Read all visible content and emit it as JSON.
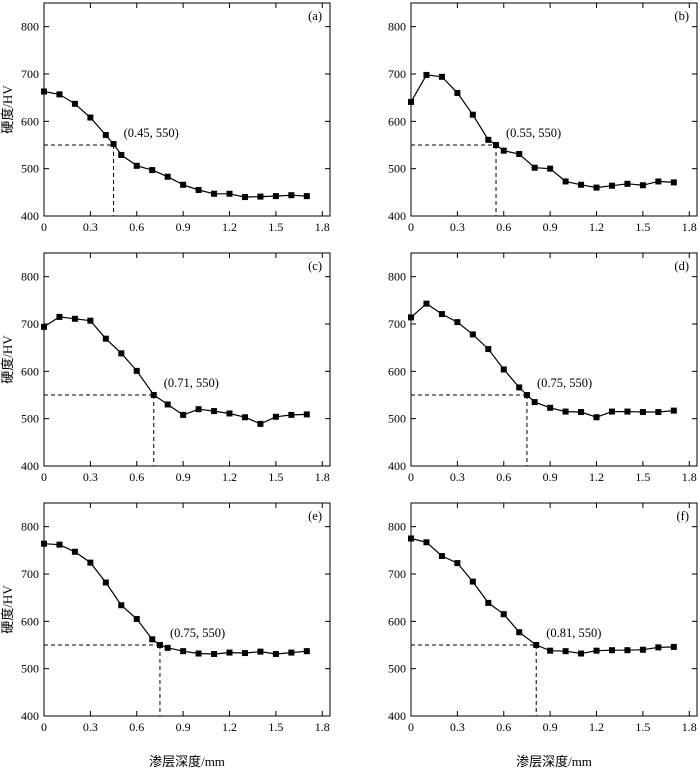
{
  "axes": {
    "ylabel": "硬度/HV",
    "xlabel": "渗层深度/mm",
    "yticks": [
      400,
      500,
      600,
      700,
      800
    ],
    "xticks": [
      "0",
      "0.3",
      "0.6",
      "0.9",
      "1.2",
      "1.5",
      "1.8"
    ]
  },
  "chart_data": [
    {
      "type": "line",
      "panel": "(a)",
      "annotation": "(0.45, 550)",
      "marker": [
        0.45,
        550
      ],
      "xlim": [
        0,
        1.85
      ],
      "ylim": [
        400,
        850
      ],
      "grid": false,
      "x": [
        0,
        0.1,
        0.2,
        0.3,
        0.4,
        0.45,
        0.5,
        0.6,
        0.7,
        0.8,
        0.9,
        1.0,
        1.1,
        1.2,
        1.3,
        1.4,
        1.5,
        1.6,
        1.7
      ],
      "y": [
        663,
        657,
        637,
        608,
        571,
        552,
        529,
        506,
        497,
        483,
        466,
        455,
        447,
        447,
        440,
        441,
        442,
        444,
        442
      ]
    },
    {
      "type": "line",
      "panel": "(b)",
      "annotation": "(0.55, 550)",
      "marker": [
        0.55,
        550
      ],
      "xlim": [
        0,
        1.85
      ],
      "ylim": [
        400,
        850
      ],
      "grid": false,
      "x": [
        0,
        0.1,
        0.2,
        0.3,
        0.4,
        0.5,
        0.55,
        0.6,
        0.7,
        0.8,
        0.9,
        1.0,
        1.1,
        1.2,
        1.3,
        1.4,
        1.5,
        1.6,
        1.7
      ],
      "y": [
        641,
        698,
        694,
        660,
        614,
        561,
        550,
        538,
        531,
        502,
        500,
        473,
        466,
        460,
        464,
        468,
        465,
        473,
        471
      ]
    },
    {
      "type": "line",
      "panel": "(c)",
      "annotation": "(0.71, 550)",
      "marker": [
        0.71,
        550
      ],
      "xlim": [
        0,
        1.85
      ],
      "ylim": [
        400,
        850
      ],
      "grid": false,
      "x": [
        0,
        0.1,
        0.2,
        0.3,
        0.4,
        0.5,
        0.6,
        0.71,
        0.8,
        0.9,
        1.0,
        1.1,
        1.2,
        1.3,
        1.4,
        1.5,
        1.6,
        1.7
      ],
      "y": [
        694,
        715,
        711,
        707,
        669,
        638,
        601,
        550,
        530,
        508,
        520,
        516,
        511,
        503,
        489,
        504,
        508,
        509
      ]
    },
    {
      "type": "line",
      "panel": "(d)",
      "annotation": "(0.75, 550)",
      "marker": [
        0.75,
        550
      ],
      "xlim": [
        0,
        1.85
      ],
      "ylim": [
        400,
        850
      ],
      "grid": false,
      "x": [
        0,
        0.1,
        0.2,
        0.3,
        0.4,
        0.5,
        0.6,
        0.7,
        0.75,
        0.8,
        0.9,
        1.0,
        1.1,
        1.2,
        1.3,
        1.4,
        1.5,
        1.6,
        1.7
      ],
      "y": [
        714,
        743,
        721,
        704,
        678,
        647,
        604,
        566,
        550,
        535,
        523,
        515,
        514,
        503,
        515,
        515,
        514,
        514,
        517
      ]
    },
    {
      "type": "line",
      "panel": "(e)",
      "annotation": "(0.75, 550)",
      "marker": [
        0.75,
        550
      ],
      "xlim": [
        0,
        1.85
      ],
      "ylim": [
        400,
        850
      ],
      "grid": false,
      "x": [
        0,
        0.1,
        0.2,
        0.3,
        0.4,
        0.5,
        0.6,
        0.7,
        0.75,
        0.8,
        0.9,
        1.0,
        1.1,
        1.2,
        1.3,
        1.4,
        1.5,
        1.6,
        1.7
      ],
      "y": [
        764,
        762,
        747,
        724,
        682,
        634,
        605,
        562,
        550,
        544,
        537,
        532,
        531,
        534,
        533,
        536,
        531,
        534,
        537
      ]
    },
    {
      "type": "line",
      "panel": "(f)",
      "annotation": "(0.81, 550)",
      "marker": [
        0.81,
        550
      ],
      "xlim": [
        0,
        1.85
      ],
      "ylim": [
        400,
        850
      ],
      "grid": false,
      "x": [
        0,
        0.1,
        0.2,
        0.3,
        0.4,
        0.5,
        0.6,
        0.7,
        0.81,
        0.9,
        1.0,
        1.1,
        1.2,
        1.3,
        1.4,
        1.5,
        1.6,
        1.7
      ],
      "y": [
        775,
        767,
        738,
        723,
        684,
        639,
        615,
        577,
        550,
        538,
        537,
        532,
        538,
        539,
        539,
        540,
        545,
        546
      ]
    }
  ]
}
